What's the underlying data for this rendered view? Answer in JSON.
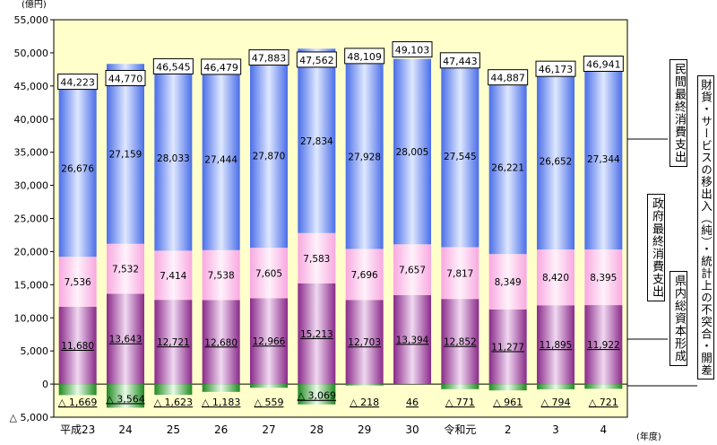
{
  "chart_data": {
    "type": "bar",
    "stacked": true,
    "unit_label": "(億円)",
    "x_unit_label": "(年度)",
    "categories": [
      "平成23",
      "24",
      "25",
      "26",
      "27",
      "28",
      "29",
      "30",
      "令和元",
      "2",
      "3",
      "4"
    ],
    "ylim": [
      -5000,
      55000
    ],
    "yticks": [
      -5000,
      0,
      5000,
      10000,
      15000,
      20000,
      25000,
      30000,
      35000,
      40000,
      45000,
      50000,
      55000
    ],
    "ytick_labels": [
      "△ 5,000",
      "0",
      "5,000",
      "10,000",
      "15,000",
      "20,000",
      "25,000",
      "30,000",
      "35,000",
      "40,000",
      "45,000",
      "50,000",
      "55,000"
    ],
    "totals": [
      44223,
      44770,
      46545,
      46479,
      47883,
      47562,
      48109,
      49103,
      47443,
      44887,
      46173,
      46941
    ],
    "total_labels": [
      "44,223",
      "44,770",
      "46,545",
      "46,479",
      "47,883",
      "47,562",
      "48,109",
      "49,103",
      "47,443",
      "44,887",
      "46,173",
      "46,941"
    ],
    "series": [
      {
        "name": "財貨・サービスの移出入（純）・統計上の不突合・開差",
        "color": "#3cb03c",
        "values": [
          -1669,
          -3564,
          -1623,
          -1183,
          -559,
          -3069,
          -218,
          46,
          -771,
          -961,
          -794,
          -721
        ],
        "labels": [
          "△ 1,669",
          "△ 3,564",
          "△ 1,623",
          "△ 1,183",
          "△ 559",
          "△ 3,069",
          "△ 218",
          "46",
          "△ 771",
          "△ 961",
          "△ 794",
          "△ 721"
        ]
      },
      {
        "name": "県内総資本形成",
        "color": "#a848a8",
        "values": [
          11680,
          13643,
          12721,
          12680,
          12966,
          15213,
          12703,
          13394,
          12852,
          11277,
          11895,
          11922
        ],
        "labels": [
          "11,680",
          "13,643",
          "12,721",
          "12,680",
          "12,966",
          "15,213",
          "12,703",
          "13,394",
          "12,852",
          "11,277",
          "11,895",
          "11,922"
        ]
      },
      {
        "name": "政府最終消費支出",
        "color": "#ffc8ee",
        "values": [
          7536,
          7532,
          7414,
          7538,
          7605,
          7583,
          7696,
          7657,
          7817,
          8349,
          8420,
          8395
        ],
        "labels": [
          "7,536",
          "7,532",
          "7,414",
          "7,538",
          "7,605",
          "7,583",
          "7,696",
          "7,657",
          "7,817",
          "8,349",
          "8,420",
          "8,395"
        ]
      },
      {
        "name": "民間最終消費支出",
        "color": "#6f90f0",
        "values": [
          26676,
          27159,
          28033,
          27444,
          27870,
          27834,
          27928,
          28005,
          27545,
          26221,
          26652,
          27344
        ],
        "labels": [
          "26,676",
          "27,159",
          "28,033",
          "27,444",
          "27,870",
          "27,834",
          "27,928",
          "28,005",
          "27,545",
          "26,221",
          "26,652",
          "27,344"
        ]
      }
    ]
  }
}
